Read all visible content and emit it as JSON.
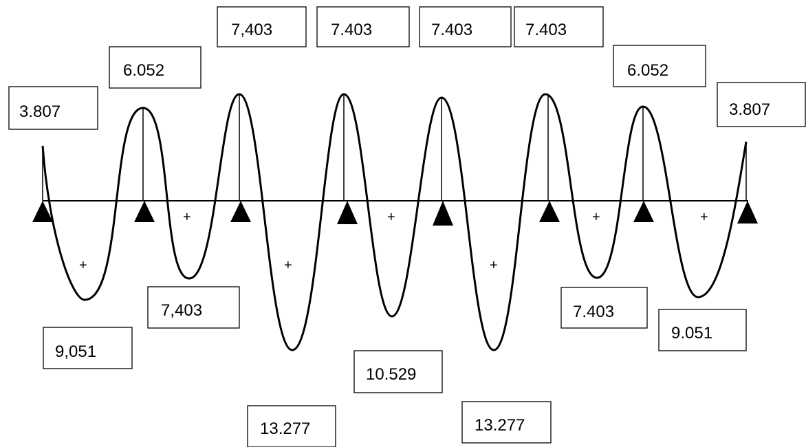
{
  "moments": {
    "end_left": "3.807",
    "support_1": "6.052",
    "support_2": "7,403",
    "support_3": "7.403",
    "support_4": "7.403",
    "support_5": "7.403",
    "support_6": "6.052",
    "end_right": "3.807",
    "span_1": "9,051",
    "span_2": "7,403",
    "span_3": "13.277",
    "span_4": "10.529",
    "span_5": "13.277",
    "span_6": "7.403",
    "span_7": "9.051"
  },
  "sign_label": "+",
  "colors": {
    "line": "#000000",
    "background": "#ffffff"
  }
}
